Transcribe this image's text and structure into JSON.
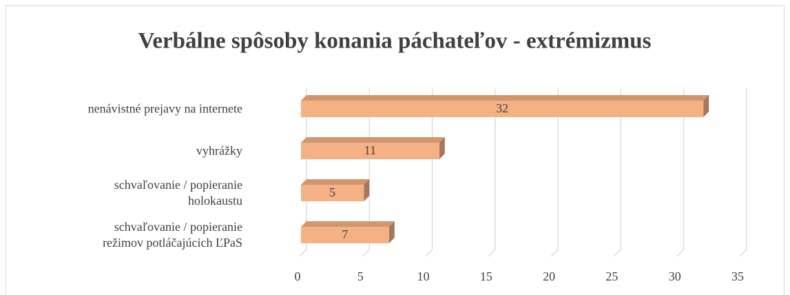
{
  "chart_data": {
    "type": "bar",
    "orientation": "horizontal",
    "title": "Verbálne spôsoby konania páchateľov - extrémizmus",
    "categories": [
      "nenávistné prejavy na internete",
      "vyhrážky",
      "schvaľovanie / popieranie\nholokaustu",
      "schvaľovanie / popieranie\nrežimov potláčajúcich ĽPaS"
    ],
    "values": [
      32,
      11,
      5,
      7
    ],
    "color": "#f4b183",
    "xlim": [
      0,
      35
    ],
    "xticks": [
      0,
      5,
      10,
      15,
      20,
      25,
      30,
      35
    ],
    "grid": true
  }
}
